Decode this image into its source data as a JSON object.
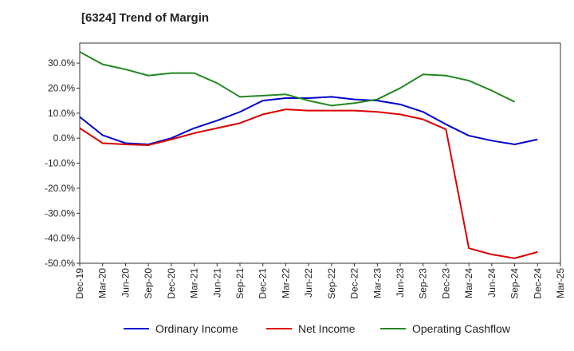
{
  "chart_title": "[6324]  Trend of Margin",
  "chart_data": {
    "type": "line",
    "title": "[6324]  Trend of Margin",
    "xlabel": "",
    "ylabel": "",
    "x": [
      "Dec-19",
      "Mar-20",
      "Jun-20",
      "Sep-20",
      "Dec-20",
      "Mar-21",
      "Jun-21",
      "Sep-21",
      "Dec-21",
      "Mar-22",
      "Jun-22",
      "Sep-22",
      "Dec-22",
      "Mar-23",
      "Jun-23",
      "Sep-23",
      "Dec-23",
      "Mar-24",
      "Jun-24",
      "Sep-24",
      "Dec-24",
      "Mar-25"
    ],
    "ylim": [
      -50,
      38
    ],
    "yticks": [
      30,
      20,
      10,
      0,
      -10,
      -20,
      -30,
      -40,
      -50
    ],
    "ytick_labels": [
      "30.0%",
      "20.0%",
      "10.0%",
      "0.0%",
      "-10.0%",
      "-20.0%",
      "-30.0%",
      "-40.0%",
      "-50.0%"
    ],
    "grid": true,
    "legend_position": "bottom",
    "series": [
      {
        "name": "Ordinary Income",
        "color": "#0000cc",
        "values": [
          8.5,
          1.2,
          -2.0,
          -2.5,
          0,
          4.0,
          7.0,
          10.5,
          15.0,
          16.0,
          16.0,
          16.5,
          15.5,
          15.0,
          13.5,
          10.5,
          5.5,
          1.0,
          -1.0,
          -2.5,
          -0.5,
          null
        ]
      },
      {
        "name": "Net Income",
        "color": "#dd0000",
        "values": [
          4.0,
          -2.0,
          -2.5,
          -2.8,
          -0.5,
          2.0,
          4.0,
          6.0,
          9.5,
          11.5,
          11.0,
          11.0,
          11.0,
          10.5,
          9.5,
          7.5,
          3.5,
          -44.0,
          -46.5,
          -48.0,
          -45.5,
          null
        ]
      },
      {
        "name": "Operating Cashflow",
        "color": "#228822",
        "values": [
          34.5,
          29.5,
          27.5,
          25.0,
          26.0,
          26.0,
          22.0,
          16.5,
          17.0,
          17.5,
          15.0,
          13.0,
          14.0,
          15.5,
          20.0,
          25.5,
          25.0,
          23.0,
          19.0,
          14.5,
          null,
          null
        ]
      }
    ]
  }
}
